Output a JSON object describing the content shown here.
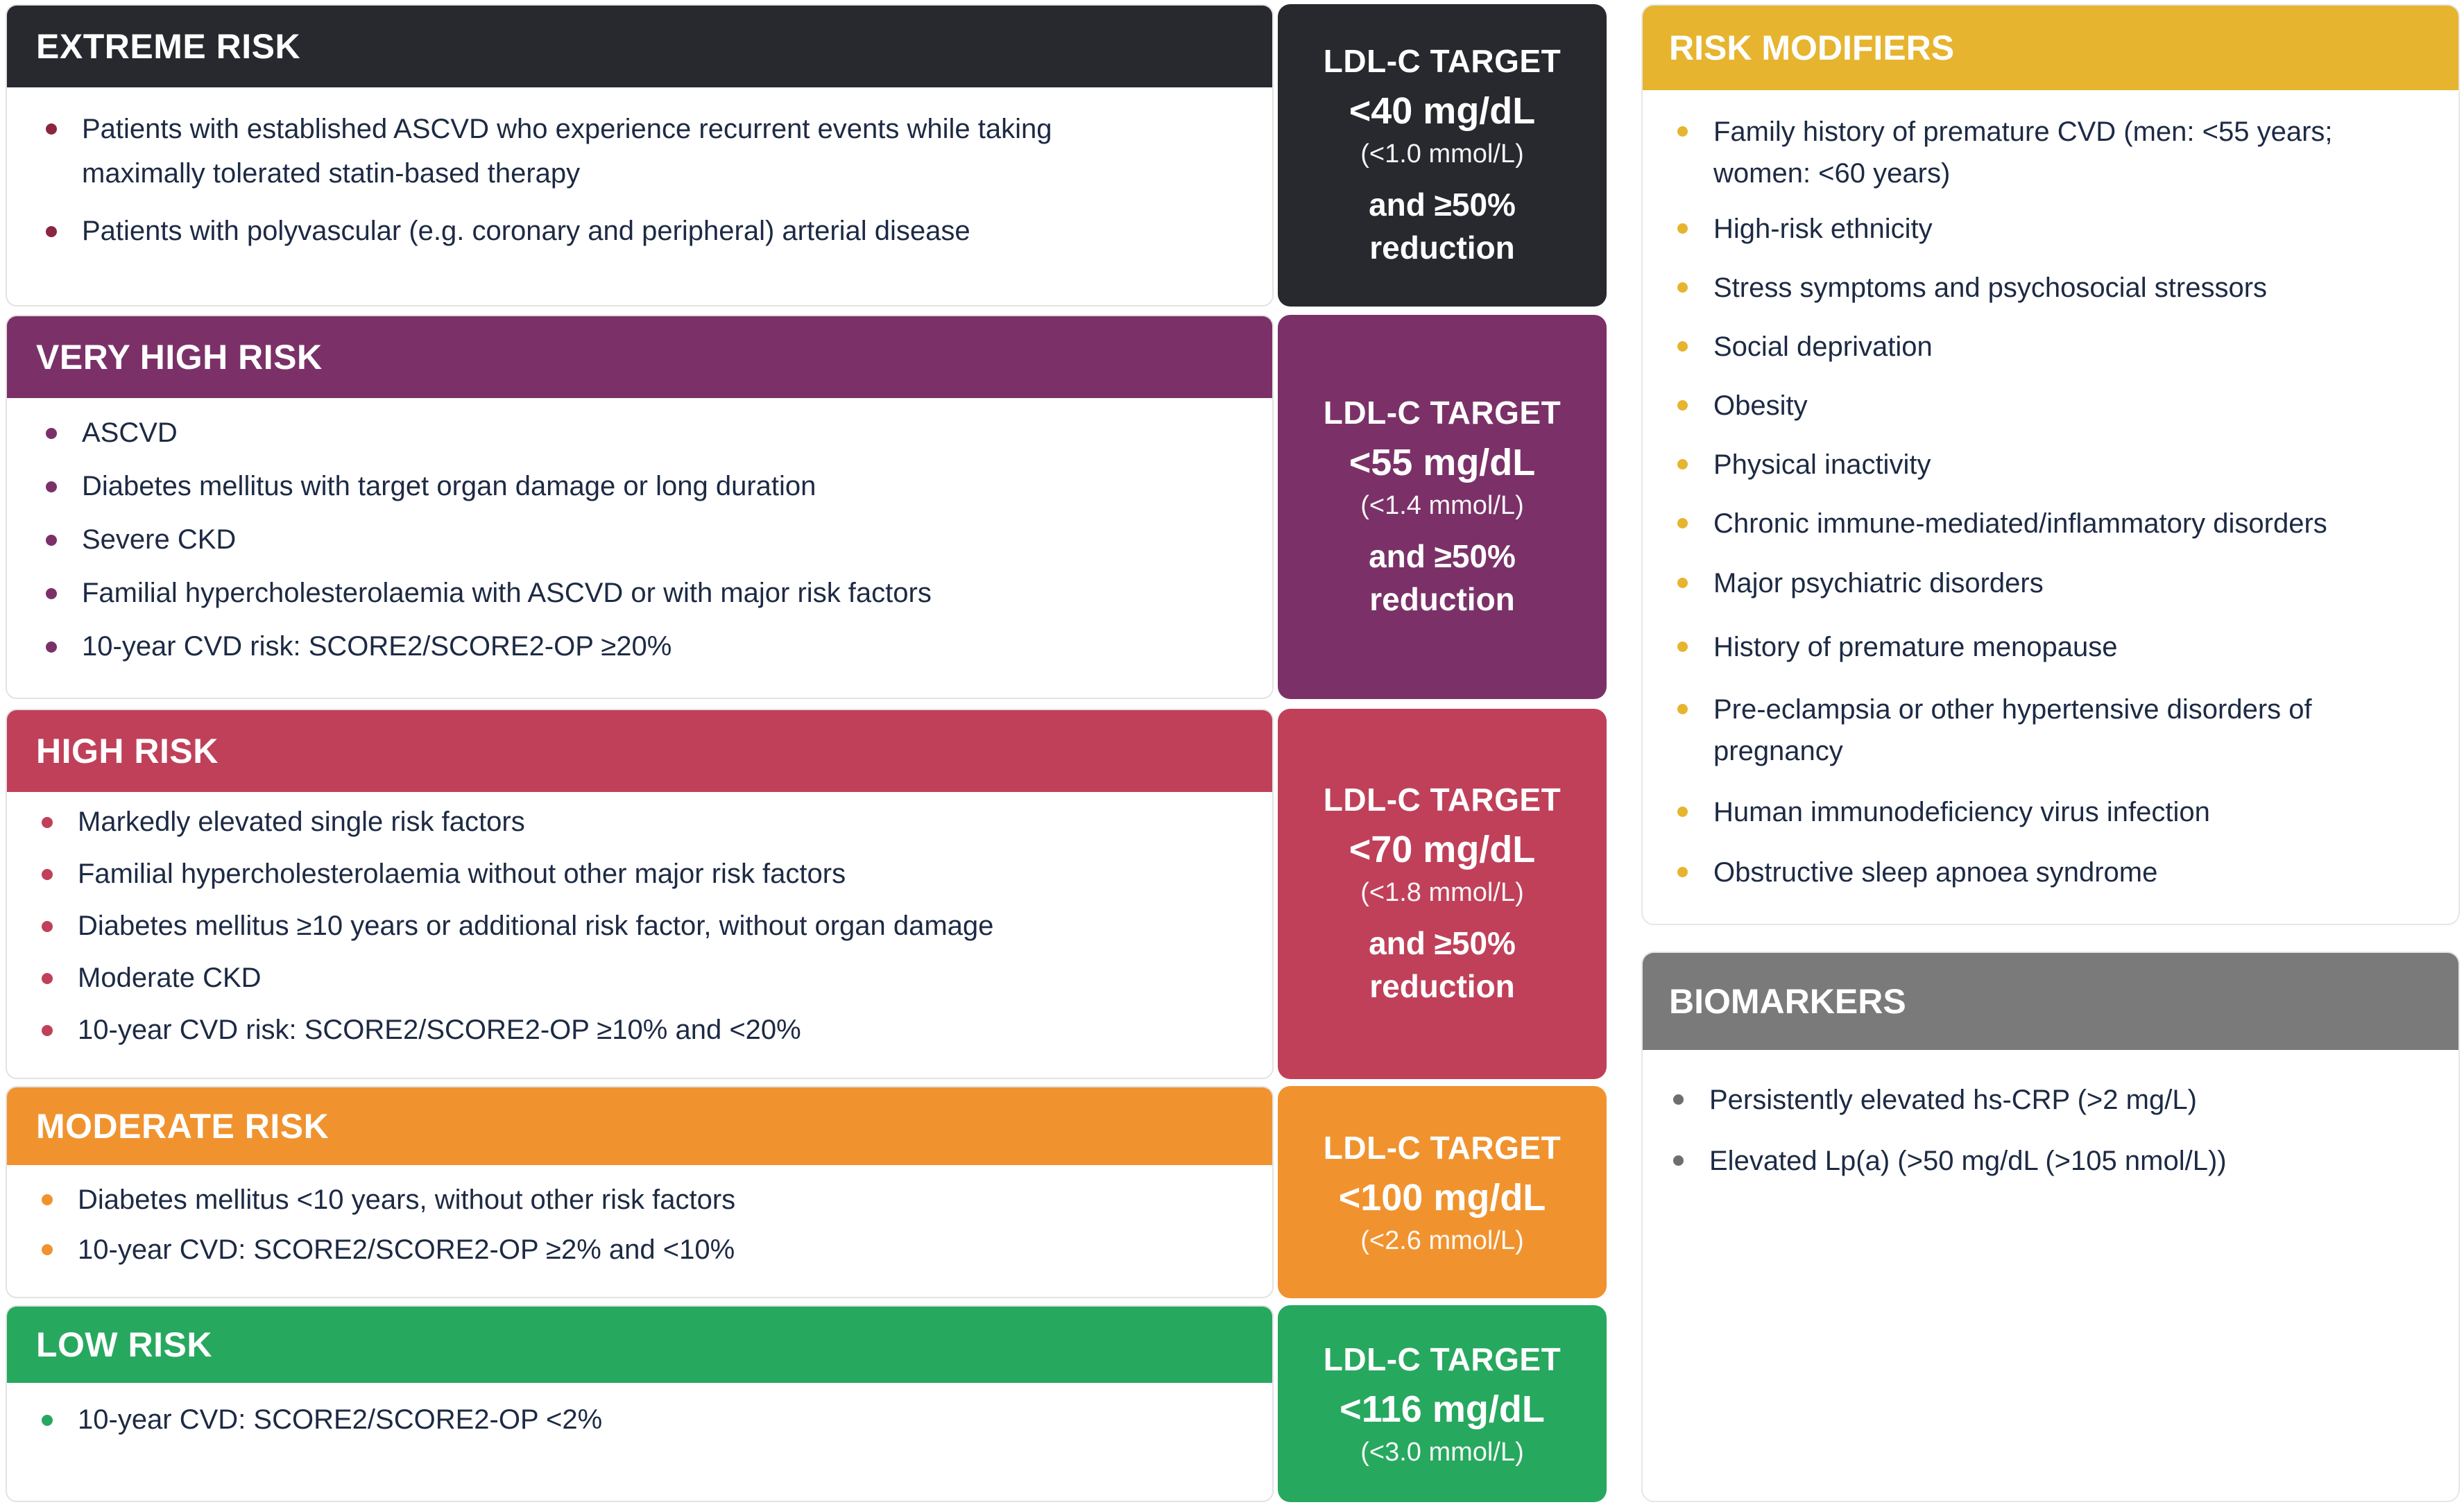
{
  "colors": {
    "extreme": "#27292e",
    "very_high": "#7b3168",
    "high": "#c0405a",
    "moderate": "#f0932f",
    "low": "#27a85f",
    "modifiers": "#e6b42f",
    "biomarkers": "#7a7a7a",
    "extreme_bullet": "#8b2640",
    "very_high_bullet": "#7b3168",
    "high_bullet": "#c0405a",
    "moderate_bullet": "#f0932f",
    "low_bullet": "#27a85f",
    "modifier_bullet": "#e6b42f",
    "biomarker_bullet": "#6e6e6e"
  },
  "risk_levels": [
    {
      "title": "EXTREME RISK",
      "items": [
        "Patients with established ASCVD who experience recurrent events while taking maximally tolerated statin-based therapy",
        "Patients with polyvascular (e.g. coronary and peripheral) arterial disease"
      ],
      "target": {
        "label": "LDL-C TARGET",
        "value": "<40 mg/dL",
        "mmol": "(<1.0 mmol/L)",
        "reduction": "and ≥50% reduction"
      }
    },
    {
      "title": "VERY HIGH RISK",
      "items": [
        "ASCVD",
        "Diabetes mellitus with target organ damage or long duration",
        "Severe CKD",
        "Familial hypercholesterolaemia with ASCVD or with major risk factors",
        "10-year CVD risk: SCORE2/SCORE2-OP ≥20%"
      ],
      "target": {
        "label": "LDL-C TARGET",
        "value": "<55 mg/dL",
        "mmol": "(<1.4 mmol/L)",
        "reduction": "and ≥50% reduction"
      }
    },
    {
      "title": "HIGH RISK",
      "items": [
        "Markedly elevated single risk factors",
        "Familial hypercholesterolaemia without other major risk factors",
        "Diabetes mellitus ≥10 years or additional risk factor, without organ damage",
        "Moderate CKD",
        "10-year CVD risk: SCORE2/SCORE2-OP ≥10% and <20%"
      ],
      "target": {
        "label": "LDL-C TARGET",
        "value": "<70 mg/dL",
        "mmol": "(<1.8 mmol/L)",
        "reduction": "and ≥50% reduction"
      }
    },
    {
      "title": "MODERATE RISK",
      "items": [
        "Diabetes mellitus <10 years, without other risk factors",
        "10-year CVD: SCORE2/SCORE2-OP ≥2% and <10%"
      ],
      "target": {
        "label": "LDL-C TARGET",
        "value": "<100 mg/dL",
        "mmol": "(<2.6 mmol/L)"
      }
    },
    {
      "title": "LOW RISK",
      "items": [
        "10-year CVD: SCORE2/SCORE2-OP <2%"
      ],
      "target": {
        "label": "LDL-C TARGET",
        "value": "<116 mg/dL",
        "mmol": "(<3.0 mmol/L)"
      }
    }
  ],
  "risk_modifiers": {
    "title": "RISK MODIFIERS",
    "items": [
      "Family history of premature CVD (men: <55 years; women: <60 years)",
      "High-risk ethnicity",
      "Stress symptoms and psychosocial stressors",
      "Social deprivation",
      "Obesity",
      "Physical inactivity",
      "Chronic immune-mediated/inflammatory disorders",
      "Major psychiatric disorders",
      "History of premature menopause",
      "Pre-eclampsia or other hypertensive disorders of pregnancy",
      "Human immunodeficiency virus infection",
      "Obstructive sleep apnoea syndrome"
    ]
  },
  "biomarkers": {
    "title": "BIOMARKERS",
    "items": [
      "Persistently elevated hs-CRP (>2 mg/L)",
      "Elevated Lp(a) (>50 mg/dL (>105 nmol/L))"
    ]
  }
}
